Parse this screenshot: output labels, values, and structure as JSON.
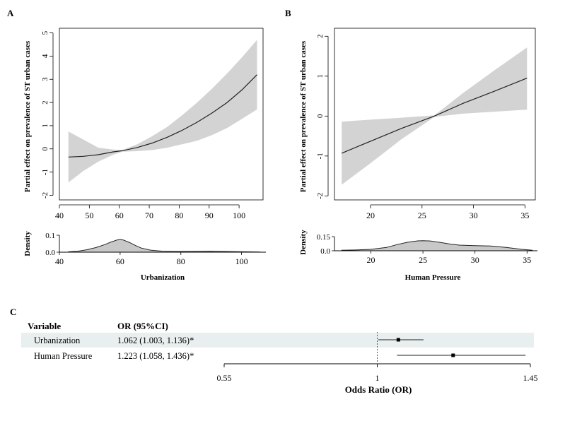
{
  "figure": {
    "panels": [
      {
        "letter": "A",
        "ylabel": "Partial effect on prevalence of ST urban cases",
        "density_ylabel": "Density",
        "xlabel": "Urbanization"
      },
      {
        "letter": "B",
        "ylabel": "Partial effect on prevalence of ST urban cases",
        "density_ylabel": "Density",
        "xlabel": "Human Pressure"
      },
      {
        "letter": "C"
      }
    ],
    "forest_headers": {
      "variable": "Variable",
      "or": "OR (95%CI)"
    },
    "forest_rows": [
      {
        "variable": "Urbanization",
        "or_text": "1.062 (1.003, 1.136)*"
      },
      {
        "variable": "Human Pressure",
        "or_text": "1.223 (1.058, 1.436)*"
      }
    ],
    "forest_xlabel": "Odds Ratio (OR)"
  },
  "colors": {
    "band": "#d3d3d3",
    "density_fill": "#c8c8c8",
    "row_shade": "#e8efee",
    "line": "#222222"
  },
  "chart_data": [
    {
      "type": "line",
      "panel": "A",
      "xlabel": "",
      "ylabel": "Partial effect on prevalence of ST urban cases",
      "xlim": [
        40,
        108
      ],
      "ylim": [
        -2.2,
        5.2
      ],
      "xticks": [
        40,
        50,
        60,
        70,
        80,
        90,
        100
      ],
      "yticks": [
        -2,
        -1,
        0,
        1,
        2,
        3,
        4,
        5
      ],
      "x": [
        43,
        48,
        53,
        58,
        61,
        66,
        71,
        76,
        81,
        86,
        91,
        96,
        101,
        106
      ],
      "series": [
        {
          "values": [
            -0.35,
            -0.32,
            -0.25,
            -0.13,
            -0.08,
            0.06,
            0.25,
            0.5,
            0.8,
            1.15,
            1.55,
            2.0,
            2.55,
            3.2
          ],
          "lower": [
            -1.45,
            -0.95,
            -0.55,
            -0.25,
            -0.12,
            -0.1,
            -0.05,
            0.05,
            0.2,
            0.35,
            0.6,
            0.9,
            1.3,
            1.7
          ],
          "upper": [
            0.75,
            0.4,
            0.05,
            -0.03,
            -0.05,
            0.2,
            0.55,
            0.95,
            1.45,
            2.0,
            2.6,
            3.25,
            3.95,
            4.7
          ]
        }
      ],
      "grid": false
    },
    {
      "type": "area",
      "panel": "A-density",
      "xlabel": "Urbanization",
      "ylabel": "Density",
      "xlim": [
        40,
        108
      ],
      "ylim": [
        0,
        0.1
      ],
      "xticks": [
        40,
        60,
        80,
        100
      ],
      "yticks": [
        0.0,
        0.1
      ],
      "x": [
        43,
        46,
        49,
        52,
        55,
        57,
        59,
        60,
        61,
        63,
        65,
        67,
        70,
        74,
        78,
        82,
        86,
        90,
        94,
        98,
        102,
        106
      ],
      "series": [
        {
          "values": [
            0.002,
            0.006,
            0.014,
            0.027,
            0.045,
            0.06,
            0.072,
            0.075,
            0.072,
            0.058,
            0.04,
            0.024,
            0.012,
            0.006,
            0.004,
            0.004,
            0.005,
            0.006,
            0.004,
            0.003,
            0.002,
            0.001
          ]
        }
      ]
    },
    {
      "type": "line",
      "panel": "B",
      "xlabel": "",
      "ylabel": "Partial effect on prevalence of ST urban cases",
      "xlim": [
        16.5,
        36
      ],
      "ylim": [
        -2.1,
        2.2
      ],
      "xticks": [
        20,
        25,
        30,
        35
      ],
      "yticks": [
        -2,
        -1,
        0,
        1,
        2
      ],
      "x": [
        17.2,
        20,
        23,
        26.2,
        29,
        32,
        35.2
      ],
      "series": [
        {
          "values": [
            -0.93,
            -0.63,
            -0.31,
            0.0,
            0.32,
            0.62,
            0.95
          ],
          "lower": [
            -1.72,
            -1.18,
            -0.58,
            -0.02,
            0.06,
            0.11,
            0.16
          ],
          "upper": [
            -0.14,
            -0.09,
            -0.04,
            0.02,
            0.58,
            1.14,
            1.72
          ]
        }
      ],
      "grid": false
    },
    {
      "type": "area",
      "panel": "B-density",
      "xlabel": "Human Pressure",
      "ylabel": "Density",
      "xlim": [
        16.5,
        36
      ],
      "ylim": [
        0,
        0.15
      ],
      "xticks": [
        20,
        25,
        30,
        35
      ],
      "yticks": [
        0.0,
        0.15
      ],
      "x": [
        17.2,
        18.5,
        20,
        21.5,
        22.5,
        23.5,
        24.5,
        25,
        25.7,
        26.7,
        27.7,
        28.5,
        30,
        31.5,
        33,
        34.5,
        35.5
      ],
      "series": [
        {
          "values": [
            0.005,
            0.008,
            0.015,
            0.035,
            0.065,
            0.09,
            0.105,
            0.107,
            0.104,
            0.088,
            0.07,
            0.06,
            0.055,
            0.05,
            0.035,
            0.015,
            0.006
          ]
        }
      ]
    },
    {
      "type": "scatter",
      "panel": "C",
      "title": "",
      "xlabel": "Odds Ratio (OR)",
      "xlim": [
        0.55,
        1.45
      ],
      "xticks": [
        0.55,
        1,
        1.45
      ],
      "reference_line": 1,
      "categories": [
        "Urbanization",
        "Human Pressure"
      ],
      "estimates": [
        1.062,
        1.223
      ],
      "ci_lower": [
        1.003,
        1.058
      ],
      "ci_upper": [
        1.136,
        1.436
      ]
    }
  ]
}
